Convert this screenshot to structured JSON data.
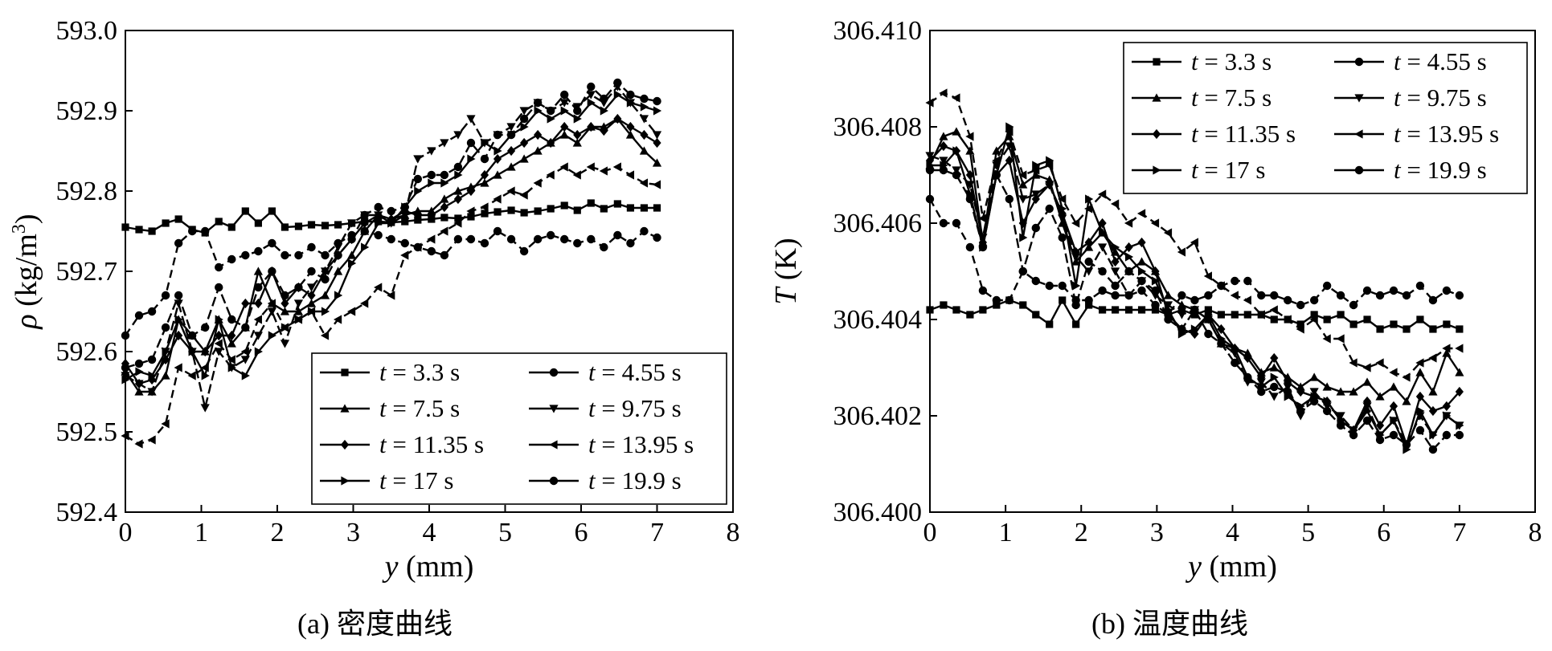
{
  "captions": {
    "a": "(a) 密度曲线",
    "b": "(b) 温度曲线"
  },
  "chart_data": [
    {
      "type": "line",
      "xlabel_var": "y",
      "xlabel_unit": " (mm)",
      "ylabel_var": "ρ",
      "ylabel_unit": " (kg/m",
      "ylabel_sup": "3",
      "ylabel_tail": ")",
      "xlim": [
        0,
        8
      ],
      "ylim": [
        592.4,
        593.0
      ],
      "xticks": [
        "0",
        "1",
        "2",
        "3",
        "4",
        "5",
        "6",
        "7",
        "8"
      ],
      "yticks": [
        "592.4",
        "592.5",
        "592.6",
        "592.7",
        "592.8",
        "592.9",
        "593.0"
      ],
      "legend_position": "bottom-right",
      "x": [
        0,
        0.18,
        0.35,
        0.53,
        0.7,
        0.88,
        1.05,
        1.23,
        1.4,
        1.58,
        1.75,
        1.93,
        2.1,
        2.28,
        2.45,
        2.63,
        2.8,
        2.98,
        3.15,
        3.33,
        3.5,
        3.68,
        3.85,
        4.03,
        4.2,
        4.38,
        4.55,
        4.73,
        4.9,
        5.08,
        5.25,
        5.43,
        5.6,
        5.78,
        5.95,
        6.13,
        6.3,
        6.48,
        6.65,
        6.83,
        7.0
      ],
      "series": [
        {
          "name": "3.3 s",
          "marker": "square",
          "values": [
            592.755,
            592.752,
            592.75,
            592.76,
            592.765,
            592.752,
            592.748,
            592.762,
            592.755,
            592.775,
            592.76,
            592.775,
            592.755,
            592.756,
            592.758,
            592.757,
            592.758,
            592.76,
            592.762,
            592.762,
            592.761,
            592.762,
            592.764,
            592.765,
            592.767,
            592.766,
            592.768,
            592.772,
            592.774,
            592.776,
            592.773,
            592.775,
            592.778,
            592.782,
            592.776,
            592.785,
            592.778,
            592.784,
            592.779,
            592.779,
            592.779
          ]
        },
        {
          "name": "4.55 s",
          "marker": "circle",
          "values": [
            592.62,
            592.645,
            592.65,
            592.67,
            592.735,
            592.75,
            592.75,
            592.705,
            592.715,
            592.72,
            592.725,
            592.735,
            592.72,
            592.72,
            592.73,
            592.72,
            592.735,
            592.745,
            592.75,
            592.745,
            592.74,
            592.735,
            592.73,
            592.725,
            592.72,
            592.74,
            592.74,
            592.735,
            592.75,
            592.74,
            592.725,
            592.74,
            592.745,
            592.74,
            592.735,
            592.74,
            592.73,
            592.745,
            592.735,
            592.75,
            592.742
          ]
        },
        {
          "name": "7.5 s",
          "marker": "triangle-up",
          "values": [
            592.575,
            592.55,
            592.55,
            592.57,
            592.64,
            592.62,
            592.6,
            592.64,
            592.61,
            592.63,
            592.7,
            592.66,
            592.65,
            592.65,
            592.66,
            592.67,
            592.7,
            592.72,
            592.75,
            592.77,
            592.765,
            592.77,
            592.775,
            592.775,
            592.79,
            592.8,
            592.805,
            592.81,
            592.82,
            592.83,
            592.84,
            592.85,
            592.86,
            592.87,
            592.86,
            592.88,
            592.88,
            592.89,
            592.87,
            592.85,
            592.835
          ]
        },
        {
          "name": "9.75 s",
          "marker": "triangle-down",
          "values": [
            592.57,
            592.56,
            592.55,
            592.6,
            592.66,
            592.6,
            592.53,
            592.6,
            592.58,
            592.59,
            592.62,
            592.65,
            592.61,
            592.66,
            592.68,
            592.7,
            592.73,
            592.76,
            592.77,
            592.77,
            592.76,
            592.77,
            592.84,
            592.85,
            592.86,
            592.87,
            592.89,
            592.86,
            592.87,
            592.88,
            592.9,
            592.91,
            592.9,
            592.91,
            592.905,
            592.92,
            592.91,
            592.93,
            592.91,
            592.89,
            592.87
          ]
        },
        {
          "name": "11.35 s",
          "marker": "diamond",
          "values": [
            592.585,
            592.56,
            592.565,
            592.59,
            592.62,
            592.6,
            592.6,
            592.62,
            592.62,
            592.66,
            592.66,
            592.7,
            592.66,
            592.68,
            592.67,
            592.7,
            592.72,
            592.74,
            592.76,
            592.77,
            592.765,
            592.775,
            592.77,
            592.77,
            592.78,
            592.79,
            592.8,
            592.82,
            592.84,
            592.85,
            592.86,
            592.87,
            592.86,
            592.88,
            592.87,
            592.88,
            592.875,
            592.89,
            592.88,
            592.87,
            592.86
          ]
        },
        {
          "name": "13.95 s",
          "marker": "triangle-left",
          "values": [
            592.495,
            592.485,
            592.49,
            592.51,
            592.58,
            592.57,
            592.58,
            592.61,
            592.59,
            592.6,
            592.64,
            592.66,
            592.63,
            592.64,
            592.65,
            592.62,
            592.64,
            592.65,
            592.66,
            592.68,
            592.67,
            592.72,
            592.73,
            592.74,
            592.75,
            592.76,
            592.775,
            592.78,
            592.79,
            592.8,
            592.795,
            592.81,
            592.82,
            592.83,
            592.82,
            592.83,
            592.825,
            592.83,
            592.82,
            592.81,
            592.808
          ]
        },
        {
          "name": "17 s",
          "marker": "triangle-right",
          "values": [
            592.565,
            592.575,
            592.57,
            592.6,
            592.64,
            592.6,
            592.57,
            592.64,
            592.58,
            592.57,
            592.6,
            592.62,
            592.63,
            592.64,
            592.65,
            592.65,
            592.67,
            592.71,
            592.73,
            592.76,
            592.76,
            592.78,
            592.8,
            592.81,
            592.81,
            592.82,
            592.84,
            592.86,
            592.85,
            592.87,
            592.88,
            592.9,
            592.89,
            592.9,
            592.89,
            592.91,
            592.9,
            592.92,
            592.91,
            592.905,
            592.9
          ]
        },
        {
          "name": "19.9 s",
          "marker": "circle",
          "values": [
            592.58,
            592.585,
            592.59,
            592.63,
            592.67,
            592.62,
            592.63,
            592.68,
            592.64,
            592.63,
            592.68,
            592.7,
            592.67,
            592.68,
            592.7,
            592.69,
            592.72,
            592.74,
            592.77,
            592.78,
            592.775,
            592.78,
            592.815,
            592.82,
            592.82,
            592.83,
            592.86,
            592.84,
            592.87,
            592.87,
            592.89,
            592.91,
            592.9,
            592.92,
            592.9,
            592.93,
            592.915,
            592.935,
            592.92,
            592.915,
            592.912
          ]
        }
      ]
    },
    {
      "type": "line",
      "xlabel_var": "y",
      "xlabel_unit": " (mm)",
      "ylabel_var": "T",
      "ylabel_unit": " (K)",
      "xlim": [
        0,
        8
      ],
      "ylim": [
        306.4,
        306.41
      ],
      "xticks": [
        "0",
        "1",
        "2",
        "3",
        "4",
        "5",
        "6",
        "7",
        "8"
      ],
      "yticks": [
        "306.400",
        "306.402",
        "306.404",
        "306.406",
        "306.408",
        "306.410"
      ],
      "legend_position": "top-right",
      "x": [
        0,
        0.18,
        0.35,
        0.53,
        0.7,
        0.88,
        1.05,
        1.23,
        1.4,
        1.58,
        1.75,
        1.93,
        2.1,
        2.28,
        2.45,
        2.63,
        2.8,
        2.98,
        3.15,
        3.33,
        3.5,
        3.68,
        3.85,
        4.03,
        4.2,
        4.38,
        4.55,
        4.73,
        4.9,
        5.08,
        5.25,
        5.43,
        5.6,
        5.78,
        5.95,
        6.13,
        6.3,
        6.48,
        6.65,
        6.83,
        7.0
      ],
      "series": [
        {
          "name": "3.3 s",
          "marker": "square",
          "values": [
            306.4042,
            306.4043,
            306.4042,
            306.4041,
            306.4042,
            306.4043,
            306.4044,
            306.4043,
            306.4041,
            306.4039,
            306.4044,
            306.4039,
            306.4043,
            306.4042,
            306.4042,
            306.4042,
            306.4042,
            306.4042,
            306.4041,
            306.4042,
            306.4041,
            306.4042,
            306.4041,
            306.4041,
            306.4041,
            306.4041,
            306.404,
            306.404,
            306.4039,
            306.4041,
            306.404,
            306.4041,
            306.4039,
            306.404,
            306.4038,
            306.4039,
            306.4038,
            306.404,
            306.4038,
            306.4039,
            306.4038
          ]
        },
        {
          "name": "4.55 s",
          "marker": "circle",
          "values": [
            306.4065,
            306.406,
            306.406,
            306.4055,
            306.4046,
            306.4044,
            306.4044,
            306.405,
            306.4048,
            306.4047,
            306.4047,
            306.4044,
            306.4044,
            306.4046,
            306.4045,
            306.4045,
            306.4046,
            306.4043,
            306.4041,
            306.4045,
            306.4044,
            306.4045,
            306.4047,
            306.4048,
            306.4048,
            306.4045,
            306.4045,
            306.4044,
            306.4043,
            306.4044,
            306.4047,
            306.4045,
            306.4043,
            306.4046,
            306.4045,
            306.4046,
            306.4045,
            306.4047,
            306.4044,
            306.4046,
            306.4045
          ]
        },
        {
          "name": "7.5 s",
          "marker": "triangle-up",
          "values": [
            306.4072,
            306.4078,
            306.4079,
            306.4075,
            306.4056,
            306.4075,
            306.4078,
            306.4068,
            306.407,
            306.4069,
            306.406,
            306.4052,
            306.4055,
            306.4058,
            306.4054,
            306.405,
            306.4052,
            306.405,
            306.4045,
            306.4043,
            306.4042,
            306.404,
            306.4035,
            306.4034,
            306.4033,
            306.4029,
            306.403,
            306.4028,
            306.4026,
            306.4028,
            306.4026,
            306.4025,
            306.4025,
            306.4027,
            306.4024,
            306.4026,
            306.4023,
            306.4029,
            306.4025,
            306.4033,
            306.4029
          ]
        },
        {
          "name": "9.75 s",
          "marker": "triangle-down",
          "values": [
            306.4074,
            306.4073,
            306.4071,
            306.4068,
            306.4057,
            306.4072,
            306.4076,
            306.4065,
            306.4066,
            306.4068,
            306.4061,
            306.4053,
            306.405,
            306.4055,
            306.405,
            306.4045,
            306.4048,
            306.4045,
            306.4043,
            306.4041,
            306.4042,
            306.404,
            306.4035,
            306.4033,
            306.4027,
            306.4027,
            306.4024,
            306.4026,
            306.402,
            306.4025,
            306.4022,
            306.402,
            306.4017,
            306.4022,
            306.4016,
            306.4019,
            306.4014,
            306.402,
            306.4016,
            306.402,
            306.4018
          ]
        },
        {
          "name": "11.35 s",
          "marker": "diamond",
          "values": [
            306.4073,
            306.4076,
            306.4075,
            306.407,
            306.4056,
            306.407,
            306.4073,
            306.406,
            306.4065,
            306.4068,
            306.4062,
            306.4054,
            306.4056,
            306.406,
            306.4052,
            306.4055,
            306.4056,
            306.405,
            306.4041,
            306.4038,
            306.4037,
            306.4041,
            306.4038,
            306.4034,
            306.4032,
            306.4028,
            306.4032,
            306.4027,
            306.4025,
            306.4024,
            306.4023,
            306.4019,
            306.4017,
            306.4023,
            306.4018,
            306.4022,
            306.4014,
            306.4024,
            306.4021,
            306.4022,
            306.4025
          ]
        },
        {
          "name": "13.95 s",
          "marker": "triangle-left",
          "values": [
            306.4085,
            306.4087,
            306.4086,
            306.4078,
            306.4061,
            306.4073,
            306.4079,
            306.407,
            306.4071,
            306.4072,
            306.4065,
            306.406,
            306.4063,
            306.4066,
            306.4064,
            306.406,
            306.4062,
            306.406,
            306.4058,
            306.4054,
            306.4056,
            306.4049,
            306.4047,
            306.4045,
            306.4044,
            306.4041,
            306.4042,
            306.404,
            306.4038,
            306.404,
            306.4036,
            306.4036,
            306.4031,
            306.403,
            306.4031,
            306.4029,
            306.4028,
            306.4031,
            306.4032,
            306.4034,
            306.4034
          ]
        },
        {
          "name": "17 s",
          "marker": "triangle-right",
          "values": [
            306.4072,
            306.4072,
            306.4075,
            306.4066,
            306.4055,
            306.407,
            306.408,
            306.4057,
            306.4072,
            306.4073,
            306.4063,
            306.4047,
            306.4065,
            306.4058,
            306.4055,
            306.4053,
            306.405,
            306.4048,
            306.4042,
            306.4037,
            306.4038,
            306.4041,
            306.4036,
            306.4034,
            306.4028,
            306.4026,
            306.4028,
            306.4024,
            306.4022,
            306.4024,
            306.4023,
            306.4019,
            306.4017,
            306.4021,
            306.4016,
            306.4019,
            306.4013,
            306.4021,
            306.4016,
            306.402,
            306.4018
          ]
        },
        {
          "name": "19.9 s",
          "marker": "circle",
          "values": [
            306.4071,
            306.4071,
            306.407,
            306.4065,
            306.4055,
            306.407,
            306.4065,
            306.405,
            306.4059,
            306.4063,
            306.4057,
            306.4043,
            306.4052,
            306.405,
            306.4047,
            306.405,
            306.4048,
            306.4046,
            306.404,
            306.4038,
            306.4042,
            306.4037,
            306.4035,
            306.4031,
            306.4028,
            306.4025,
            306.4026,
            306.4025,
            306.4021,
            306.4023,
            306.4021,
            306.4018,
            306.4016,
            306.4019,
            306.4015,
            306.4016,
            306.4014,
            306.4017,
            306.4013,
            306.4016,
            306.4016
          ]
        }
      ]
    }
  ]
}
